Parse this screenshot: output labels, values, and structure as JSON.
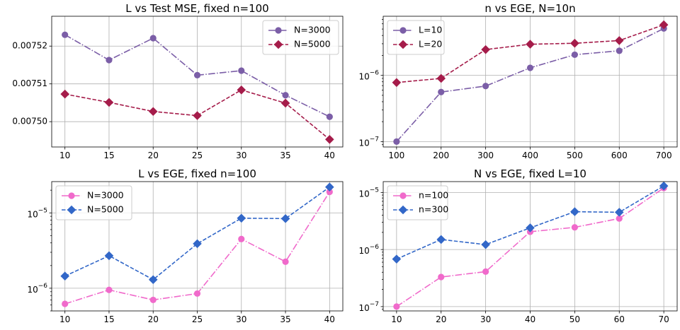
{
  "chart_data": [
    {
      "type": "line",
      "title": "L vs Test MSE, fixed n=100",
      "xlabel": "",
      "ylabel": "",
      "yscale": "linear",
      "x": [
        10,
        15,
        20,
        25,
        30,
        35,
        40
      ],
      "xticks": [
        10,
        15,
        20,
        25,
        30,
        35,
        40
      ],
      "xtick_labels": [
        "10",
        "15",
        "20",
        "25",
        "30",
        "35",
        "40"
      ],
      "xlim": [
        8.5,
        41.5
      ],
      "ylim": [
        0.0074933,
        0.0075279
      ],
      "yticks": [
        0.0075,
        0.00751,
        0.00752
      ],
      "ytick_labels": [
        "0.00750",
        "0.00751",
        "0.00752"
      ],
      "grid": true,
      "legend": "upper right",
      "series": [
        {
          "name": "N=3000",
          "values": [
            0.007523,
            0.0075163,
            0.0075221,
            0.0075123,
            0.0075135,
            0.007507,
            0.0075013
          ],
          "color": "#7b5ea7",
          "marker": "circle",
          "dash": "dashdot"
        },
        {
          "name": "N=5000",
          "values": [
            0.0075073,
            0.0075051,
            0.0075027,
            0.0075016,
            0.0075084,
            0.0075049,
            0.0074953
          ],
          "color": "#a51c4a",
          "marker": "diamond",
          "dash": "dashed"
        }
      ]
    },
    {
      "type": "line",
      "title": "n vs EGE, N=10n",
      "xlabel": "",
      "ylabel": "",
      "yscale": "log",
      "x": [
        100,
        200,
        300,
        400,
        500,
        600,
        700
      ],
      "xticks": [
        100,
        200,
        300,
        400,
        500,
        600,
        700
      ],
      "xtick_labels": [
        "100",
        "200",
        "300",
        "400",
        "500",
        "600",
        "700"
      ],
      "xlim": [
        70,
        730
      ],
      "ylim": [
        8.3e-08,
        7.8e-06
      ],
      "yticks": [
        1e-07,
        1e-06
      ],
      "ytick_labels": [
        "10^-7",
        "10^-6"
      ],
      "grid": true,
      "legend": "upper left",
      "series": [
        {
          "name": "L=10",
          "values": [
            1e-07,
            5.6e-07,
            6.9e-07,
            1.3e-06,
            2.05e-06,
            2.35e-06,
            5.1e-06
          ],
          "color": "#7b5ea7",
          "marker": "circle",
          "dash": "dashdot"
        },
        {
          "name": "L=20",
          "values": [
            7.8e-07,
            9e-07,
            2.45e-06,
            2.95e-06,
            3.05e-06,
            3.35e-06,
            5.8e-06
          ],
          "color": "#a51c4a",
          "marker": "diamond",
          "dash": "dashed"
        }
      ]
    },
    {
      "type": "line",
      "title": "L vs EGE, fixed n=100",
      "xlabel": "",
      "ylabel": "",
      "yscale": "log",
      "x": [
        10,
        15,
        20,
        25,
        30,
        35,
        40
      ],
      "xticks": [
        10,
        15,
        20,
        25,
        30,
        35,
        40
      ],
      "xtick_labels": [
        "10",
        "15",
        "20",
        "25",
        "30",
        "35",
        "40"
      ],
      "xlim": [
        8.5,
        41.5
      ],
      "ylim": [
        5e-07,
        2.6e-05
      ],
      "yticks": [
        1e-06,
        1e-05
      ],
      "ytick_labels": [
        "10^-6",
        "10^-5"
      ],
      "grid": true,
      "legend": "upper left",
      "series": [
        {
          "name": "N=3000",
          "values": [
            6.2e-07,
            9.5e-07,
            7e-07,
            8.5e-07,
            4.5e-06,
            2.25e-06,
            1.9e-05
          ],
          "color": "#f06acb",
          "marker": "circle",
          "dash": "dashdot"
        },
        {
          "name": "N=5000",
          "values": [
            1.45e-06,
            2.7e-06,
            1.3e-06,
            3.9e-06,
            8.5e-06,
            8.4e-06,
            2.2e-05
          ],
          "color": "#3267c8",
          "marker": "diamond",
          "dash": "dashed"
        }
      ]
    },
    {
      "type": "line",
      "title": "N vs EGE, fixed L=10",
      "xlabel": "",
      "ylabel": "",
      "yscale": "log",
      "x": [
        10,
        20,
        30,
        40,
        50,
        60,
        70
      ],
      "xticks": [
        10,
        20,
        30,
        40,
        50,
        60,
        70
      ],
      "xtick_labels": [
        "10",
        "20",
        "30",
        "40",
        "50",
        "60",
        "70"
      ],
      "xlim": [
        7,
        73
      ],
      "ylim": [
        8.4e-08,
        1.55e-05
      ],
      "yticks": [
        1e-07,
        1e-06,
        1e-05
      ],
      "ytick_labels": [
        "10^-7",
        "10^-6",
        "10^-5"
      ],
      "grid": true,
      "legend": "upper left",
      "series": [
        {
          "name": "n=100",
          "values": [
            1e-07,
            3.3e-07,
            4.1e-07,
            2.05e-06,
            2.45e-06,
            3.5e-06,
            1.2e-05
          ],
          "color": "#f06acb",
          "marker": "circle",
          "dash": "dashdot"
        },
        {
          "name": "n=300",
          "values": [
            6.8e-07,
            1.5e-06,
            1.22e-06,
            2.4e-06,
            4.6e-06,
            4.5e-06,
            1.3e-05
          ],
          "color": "#3267c8",
          "marker": "diamond",
          "dash": "dashed"
        }
      ]
    }
  ]
}
